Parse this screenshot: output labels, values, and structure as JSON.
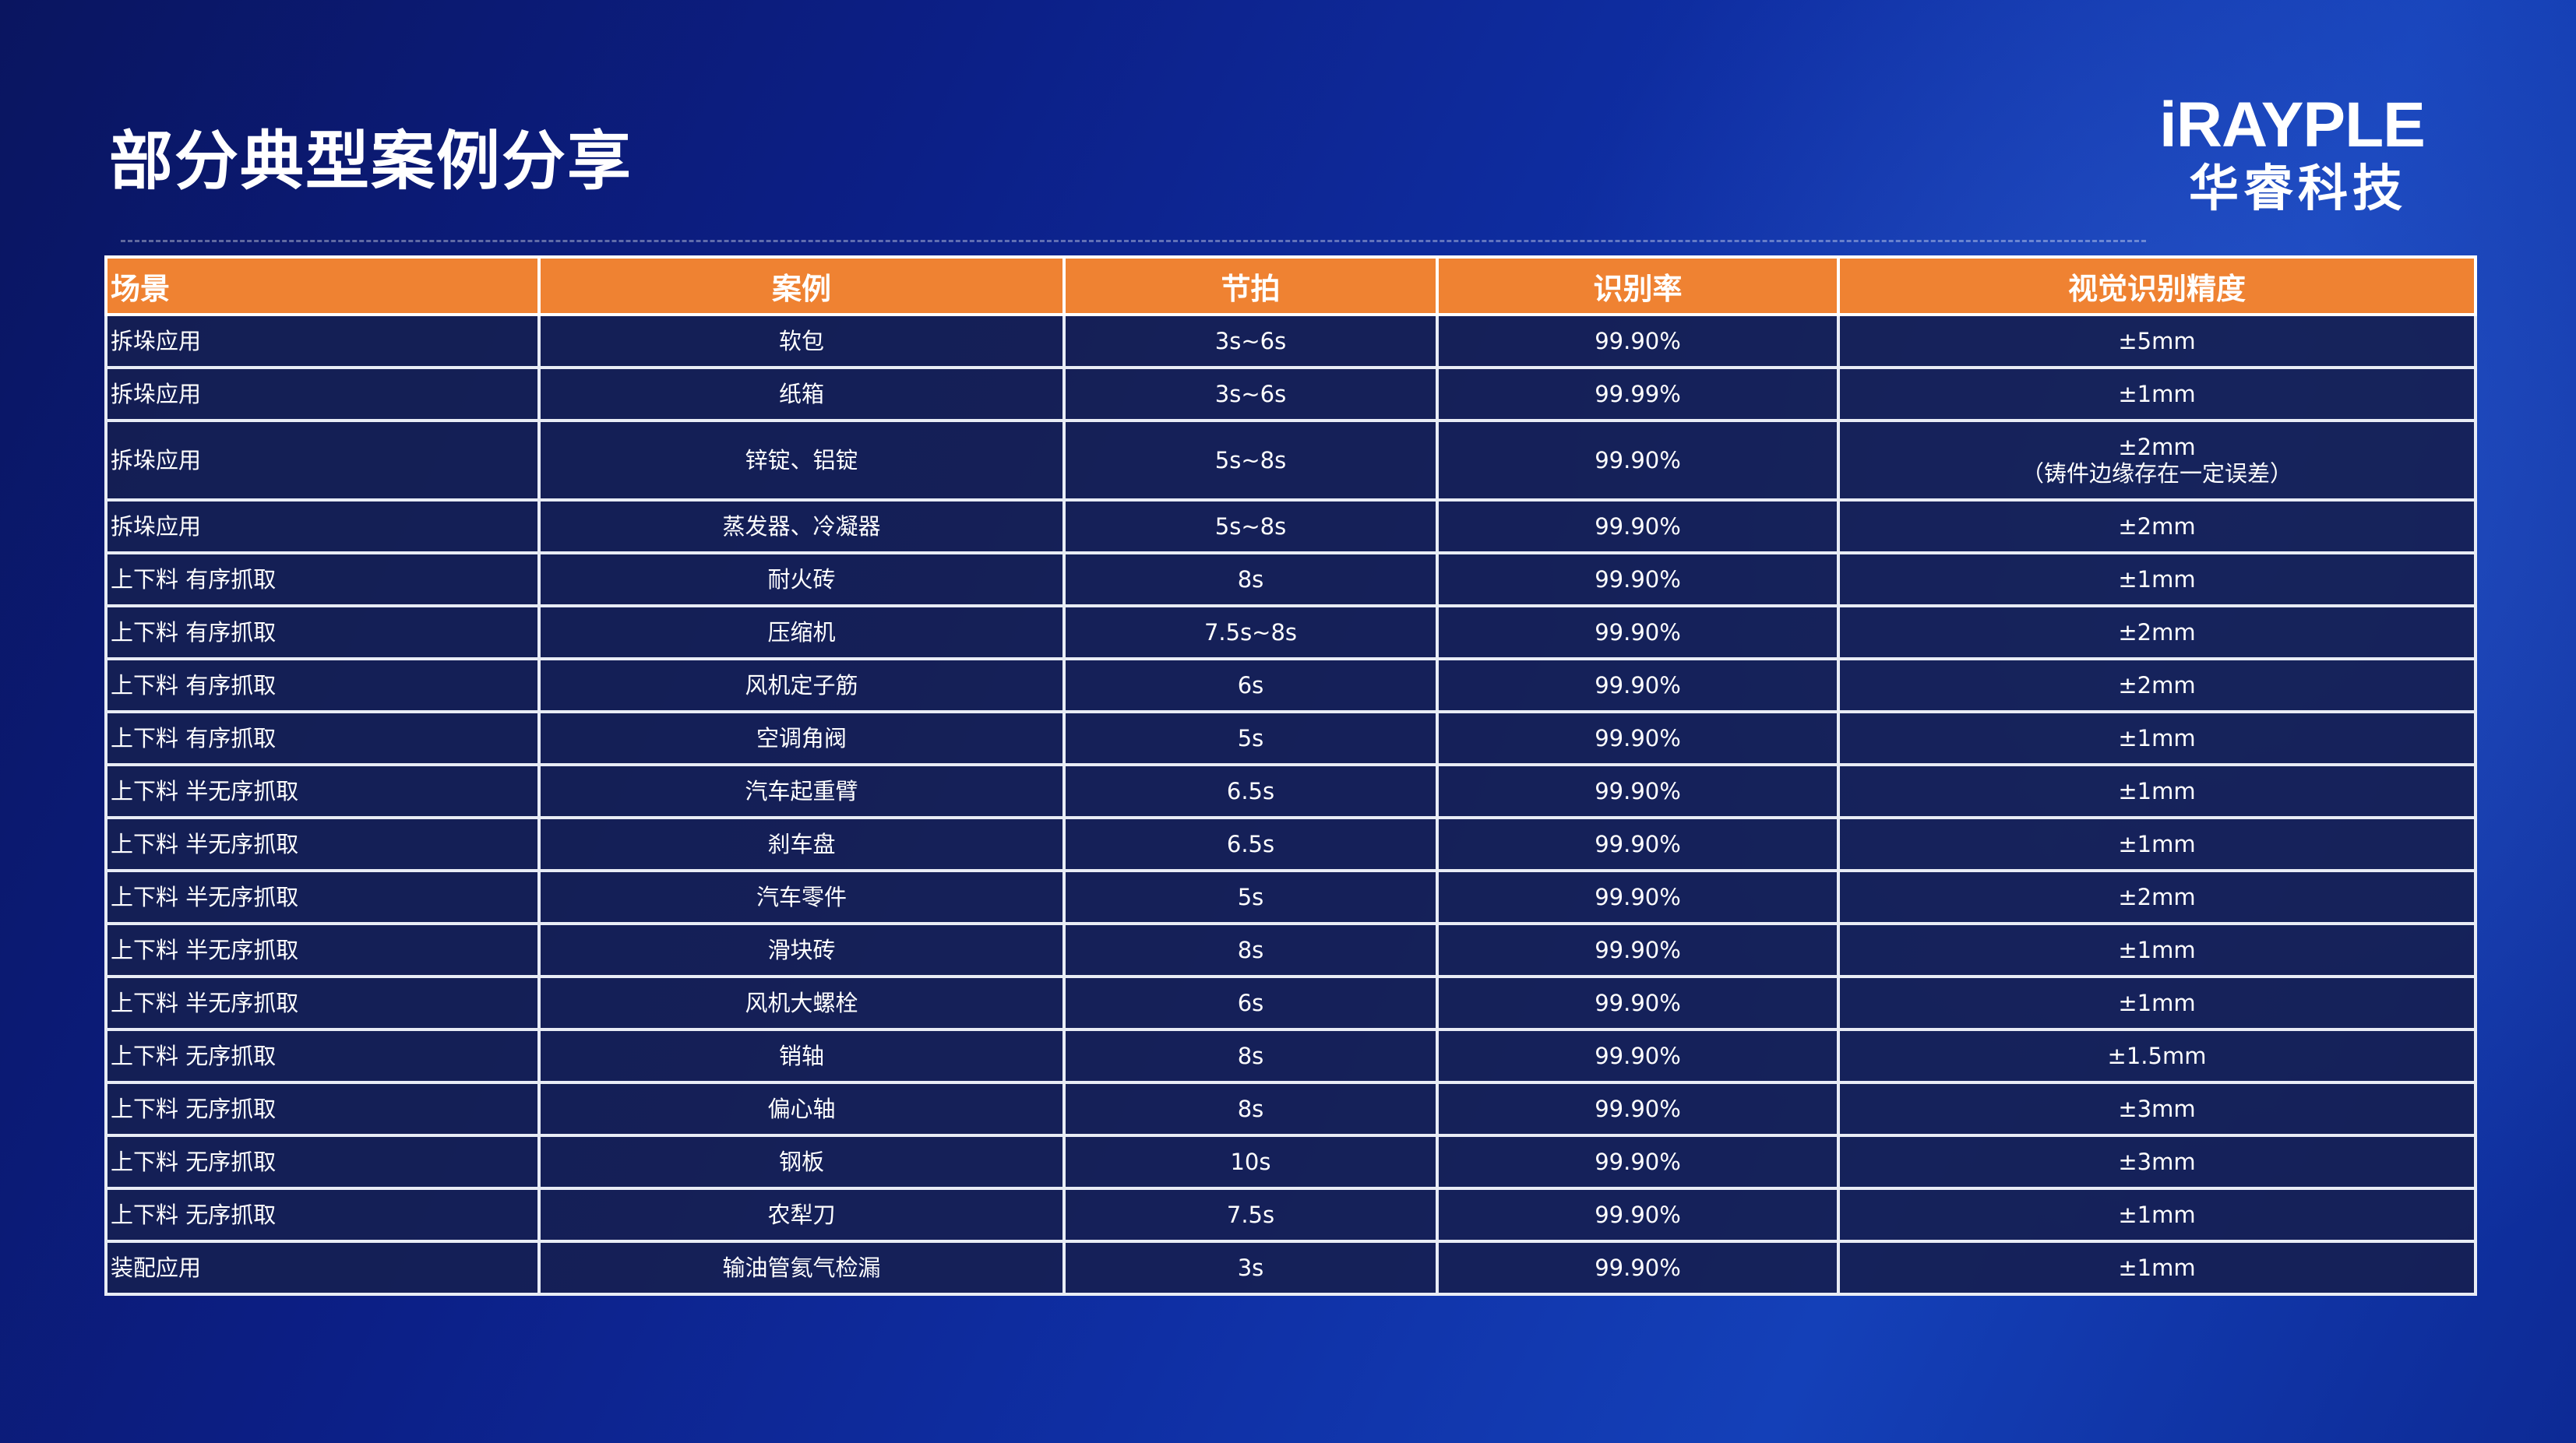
{
  "title": "部分典型案例分享",
  "logo": {
    "en": "iRAYPLE",
    "cn": "华睿科技"
  },
  "colors": {
    "header_bg": "#ef8232",
    "row_bg": "#162052",
    "accent": "#f27f2b"
  },
  "table": {
    "headers": [
      "场景",
      "案例",
      "节拍",
      "识别率",
      "视觉识别精度"
    ],
    "rows": [
      {
        "scene": "拆垛应用",
        "case": "软包",
        "cycle": "3s~6s",
        "rate": "99.90%",
        "precision": "±5mm",
        "note": ""
      },
      {
        "scene": "拆垛应用",
        "case": "纸箱",
        "cycle": "3s~6s",
        "rate": "99.99%",
        "precision": "±1mm",
        "note": ""
      },
      {
        "scene": "拆垛应用",
        "case": "锌锭、铝锭",
        "cycle": "5s~8s",
        "rate": "99.90%",
        "precision": "±2mm",
        "note": "（铸件边缘存在一定误差）"
      },
      {
        "scene": "拆垛应用",
        "case": "蒸发器、冷凝器",
        "cycle": "5s~8s",
        "rate": "99.90%",
        "precision": "±2mm",
        "note": ""
      },
      {
        "scene": "上下料 有序抓取",
        "case": "耐火砖",
        "cycle": "8s",
        "rate": "99.90%",
        "precision": "±1mm",
        "note": ""
      },
      {
        "scene": "上下料 有序抓取",
        "case": "压缩机",
        "cycle": "7.5s~8s",
        "rate": "99.90%",
        "precision": "±2mm",
        "note": ""
      },
      {
        "scene": "上下料 有序抓取",
        "case": "风机定子筋",
        "cycle": "6s",
        "rate": "99.90%",
        "precision": "±2mm",
        "note": ""
      },
      {
        "scene": "上下料 有序抓取",
        "case": "空调角阀",
        "cycle": "5s",
        "rate": "99.90%",
        "precision": "±1mm",
        "note": ""
      },
      {
        "scene": "上下料 半无序抓取",
        "case": "汽车起重臂",
        "cycle": "6.5s",
        "rate": "99.90%",
        "precision": "±1mm",
        "note": ""
      },
      {
        "scene": "上下料 半无序抓取",
        "case": "刹车盘",
        "cycle": "6.5s",
        "rate": "99.90%",
        "precision": "±1mm",
        "note": ""
      },
      {
        "scene": "上下料 半无序抓取",
        "case": "汽车零件",
        "cycle": "5s",
        "rate": "99.90%",
        "precision": "±2mm",
        "note": ""
      },
      {
        "scene": "上下料 半无序抓取",
        "case": "滑块砖",
        "cycle": "8s",
        "rate": "99.90%",
        "precision": "±1mm",
        "note": ""
      },
      {
        "scene": "上下料 半无序抓取",
        "case": "风机大螺栓",
        "cycle": "6s",
        "rate": "99.90%",
        "precision": "±1mm",
        "note": ""
      },
      {
        "scene": "上下料 无序抓取",
        "case": "销轴",
        "cycle": "8s",
        "rate": "99.90%",
        "precision": "±1.5mm",
        "note": ""
      },
      {
        "scene": "上下料 无序抓取",
        "case": "偏心轴",
        "cycle": "8s",
        "rate": "99.90%",
        "precision": "±3mm",
        "note": ""
      },
      {
        "scene": "上下料 无序抓取",
        "case": "钢板",
        "cycle": "10s",
        "rate": "99.90%",
        "precision": "±3mm",
        "note": ""
      },
      {
        "scene": "上下料 无序抓取",
        "case": "农犁刀",
        "cycle": "7.5s",
        "rate": "99.90%",
        "precision": "±1mm",
        "note": ""
      },
      {
        "scene": "装配应用",
        "case": "输油管氦气检漏",
        "cycle": "3s",
        "rate": "99.90%",
        "precision": "±1mm",
        "note": ""
      }
    ]
  }
}
